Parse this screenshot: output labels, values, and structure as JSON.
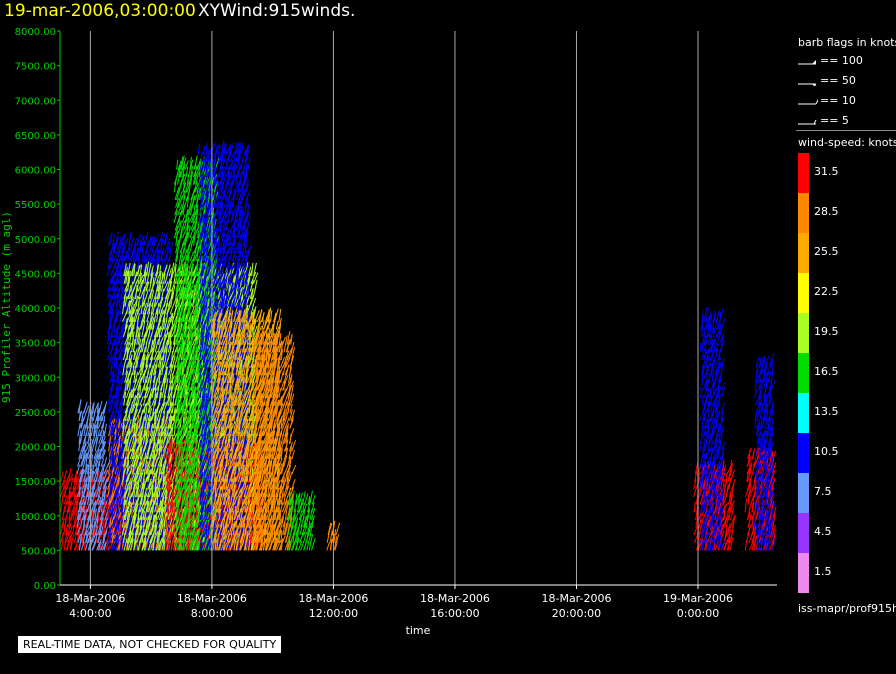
{
  "header": {
    "date": "19-mar-2006,03:00:00",
    "plot_name": "XYWind:915winds."
  },
  "chart_data": {
    "type": "scatter",
    "ylabel": "915 Profiler Altitude (m agl)",
    "xlabel": "time",
    "ylim": [
      0,
      8000
    ],
    "y_ticks": [
      "0.00",
      "500.00",
      "1000.00",
      "1500.00",
      "2000.00",
      "2500.00",
      "3000.00",
      "3500.00",
      "4000.00",
      "4500.00",
      "5000.00",
      "5500.00",
      "6000.00",
      "6500.00",
      "7000.00",
      "7500.00",
      "8000.00"
    ],
    "x_ticks": [
      {
        "date": "18-Mar-2006",
        "time": "4:00:00"
      },
      {
        "date": "18-Mar-2006",
        "time": "8:00:00"
      },
      {
        "date": "18-Mar-2006",
        "time": "12:00:00"
      },
      {
        "date": "18-Mar-2006",
        "time": "16:00:00"
      },
      {
        "date": "18-Mar-2006",
        "time": "20:00:00"
      },
      {
        "date": "19-Mar-2006",
        "time": "0:00:00"
      }
    ],
    "xlim_hours": [
      3.0,
      26.6
    ],
    "grid": "vertical lines at ticks",
    "colorbar": "right",
    "wind_clusters": [
      {
        "start_hour": 3.05,
        "end_hour": 5.1,
        "top_altitude": 1500,
        "speed": 31.5
      },
      {
        "start_hour": 3.6,
        "end_hour": 4.5,
        "top_altitude": 2500,
        "speed": 7.5
      },
      {
        "start_hour": 4.6,
        "end_hour": 6.6,
        "top_altitude": 2300,
        "speed": 28.5
      },
      {
        "start_hour": 4.6,
        "end_hour": 6.6,
        "top_altitude": 4900,
        "speed": 10.5
      },
      {
        "start_hour": 5.1,
        "end_hour": 9.4,
        "top_altitude": 4500,
        "speed": 19.5
      },
      {
        "start_hour": 6.5,
        "end_hour": 9.6,
        "top_altitude": 2000,
        "speed": 31.5
      },
      {
        "start_hour": 6.8,
        "end_hour": 8.1,
        "top_altitude": 6100,
        "speed": 16.5
      },
      {
        "start_hour": 7.6,
        "end_hour": 9.2,
        "top_altitude": 6300,
        "speed": 10.5
      },
      {
        "start_hour": 8.0,
        "end_hour": 10.2,
        "top_altitude": 3800,
        "speed": 25.5
      },
      {
        "start_hour": 9.4,
        "end_hour": 10.6,
        "top_altitude": 3500,
        "speed": 28.5
      },
      {
        "start_hour": 10.5,
        "end_hour": 11.3,
        "top_altitude": 1200,
        "speed": 16.5
      },
      {
        "start_hour": 11.8,
        "end_hour": 12.1,
        "top_altitude": 800,
        "speed": 28.5
      },
      {
        "start_hour": 23.9,
        "end_hour": 25.1,
        "top_altitude": 1700,
        "speed": 31.5
      },
      {
        "start_hour": 24.1,
        "end_hour": 24.8,
        "top_altitude": 3800,
        "speed": 10.5
      },
      {
        "start_hour": 25.6,
        "end_hour": 26.5,
        "top_altitude": 1900,
        "speed": 31.5
      },
      {
        "start_hour": 25.9,
        "end_hour": 26.4,
        "top_altitude": 3200,
        "speed": 10.5
      }
    ]
  },
  "legend": {
    "barb_title": "barb flags in knots",
    "barb_entries": [
      "== 100",
      "== 50",
      "== 10",
      "== 5"
    ],
    "speed_title": "wind-speed: knots",
    "speed_bins": [
      {
        "label": "31.5",
        "color": "#ff0000"
      },
      {
        "label": "28.5",
        "color": "#ff8800"
      },
      {
        "label": "25.5",
        "color": "#ffaa00"
      },
      {
        "label": "22.5",
        "color": "#ffff00"
      },
      {
        "label": "19.5",
        "color": "#aaff22"
      },
      {
        "label": "16.5",
        "color": "#00dd00"
      },
      {
        "label": "13.5",
        "color": "#00ffff"
      },
      {
        "label": "10.5",
        "color": "#0000ff"
      },
      {
        "label": "7.5",
        "color": "#6699ff"
      },
      {
        "label": "4.5",
        "color": "#9933ff"
      },
      {
        "label": "1.5",
        "color": "#ee88ee"
      }
    ]
  },
  "footer": {
    "source": "iss-mapr/prof915h",
    "quality_note": "REAL-TIME DATA, NOT CHECKED FOR QUALITY"
  },
  "colors": {
    "axis": "#00cc00",
    "title_date": "#ffff00",
    "grid": "#aaaaaa"
  }
}
